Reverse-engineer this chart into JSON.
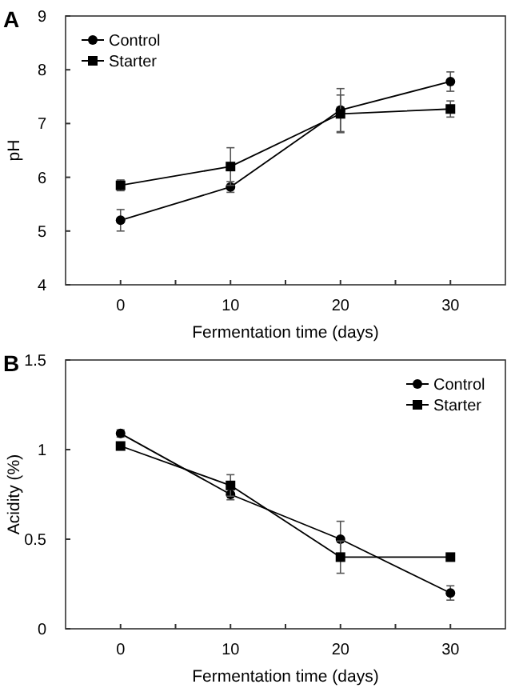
{
  "chart_data": [
    {
      "type": "line",
      "annotations": [
        "A"
      ],
      "xlabel": "Fermentation time (days)",
      "ylabel": "pH",
      "x": [
        0,
        10,
        20,
        30
      ],
      "xlim": [
        -5,
        35
      ],
      "xticks": [
        0,
        {
          "value": 5,
          "label": null
        },
        10,
        {
          "value": 15,
          "label": null
        },
        20,
        {
          "value": 25,
          "label": null
        },
        30
      ],
      "ylim": [
        4,
        9
      ],
      "yticks": [
        4,
        5,
        6,
        7,
        8,
        9
      ],
      "legend": "top left",
      "grid": false,
      "line_style": "solid",
      "series": [
        {
          "name": "Control",
          "color": "#000000",
          "marker": "circle",
          "values": [
            5.2,
            5.82,
            7.25,
            7.78
          ],
          "errors": [
            0.2,
            0.1,
            0.4,
            0.18
          ]
        },
        {
          "name": "Starter",
          "color": "#000000",
          "marker": "square",
          "values": [
            5.85,
            6.2,
            7.18,
            7.27
          ],
          "errors": [
            0.1,
            0.35,
            0.35,
            0.15
          ]
        }
      ]
    },
    {
      "type": "line",
      "annotations": [
        "B"
      ],
      "xlabel": "Fermentation time (days)",
      "ylabel": "Acidity (%)",
      "x": [
        0,
        10,
        20,
        30
      ],
      "xlim": [
        -5,
        35
      ],
      "xticks": [
        0,
        {
          "value": 5,
          "label": null
        },
        10,
        {
          "value": 15,
          "label": null
        },
        20,
        {
          "value": 25,
          "label": null
        },
        30
      ],
      "ylim": [
        0,
        1.5
      ],
      "yticks": [
        0,
        0.5,
        1,
        1.5
      ],
      "legend": "top right",
      "grid": false,
      "line_style": "solid",
      "series": [
        {
          "name": "Control",
          "color": "#000000",
          "marker": "circle",
          "values": [
            1.09,
            0.75,
            0.5,
            0.2
          ],
          "errors": [
            0.02,
            0.03,
            0.1,
            0.04
          ]
        },
        {
          "name": "Starter",
          "color": "#000000",
          "marker": "square",
          "values": [
            1.02,
            0.8,
            0.4,
            0.4
          ],
          "errors": [
            0.01,
            0.06,
            0.09,
            0.01
          ]
        }
      ]
    }
  ]
}
